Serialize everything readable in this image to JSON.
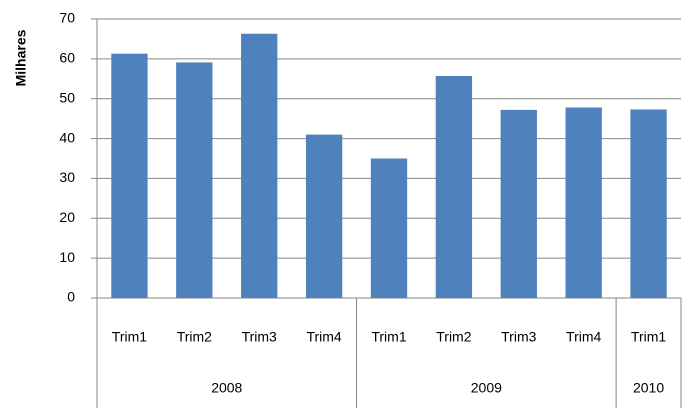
{
  "chart_data": {
    "type": "bar",
    "y_label": "Milhares",
    "color": "#4f81bd",
    "groups": [
      {
        "name": "2008",
        "categories": [
          "Trim1",
          "Trim2",
          "Trim3",
          "Trim4"
        ],
        "values": [
          61.3,
          59.1,
          66.3,
          41
        ]
      },
      {
        "name": "2009",
        "categories": [
          "Trim1",
          "Trim2",
          "Trim3",
          "Trim4"
        ],
        "values": [
          35,
          55.7,
          47.2,
          47.8
        ]
      },
      {
        "name": "2010",
        "categories": [
          "Trim1"
        ],
        "values": [
          47.3
        ]
      }
    ],
    "ylim": [
      0,
      70
    ],
    "yticks": [
      0,
      10,
      20,
      30,
      40,
      50,
      60,
      70
    ],
    "grid": true
  }
}
